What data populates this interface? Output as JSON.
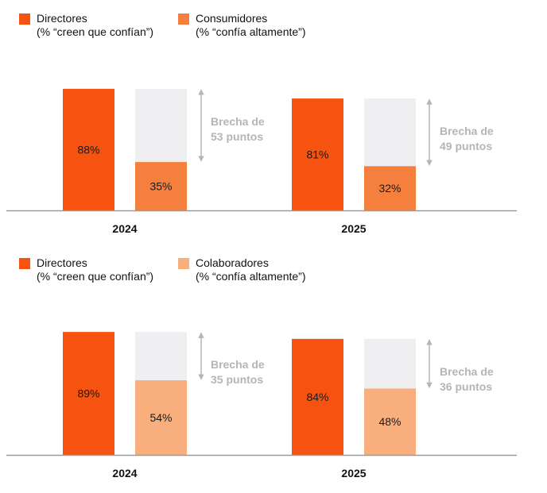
{
  "colors": {
    "primary": "#f5530f",
    "consumers": "#f5803e",
    "collaborators": "#f8ae7d",
    "track": "#efeff1",
    "axis": "#9a9a9a",
    "arrow": "#b5b5b5"
  },
  "chart_data": [
    {
      "type": "bar",
      "title": "",
      "ylim": [
        0,
        100
      ],
      "grid": false,
      "legend_placement": "top-left",
      "legend": [
        {
          "label": "Directores",
          "sublabel": "(% “creen que confían”)",
          "color": "#f5530f"
        },
        {
          "label": "Consumidores",
          "sublabel": "(% “confía altamente”)",
          "color": "#f5803e"
        }
      ],
      "categories": [
        "2024",
        "2025"
      ],
      "series": [
        {
          "name": "Directores",
          "values": [
            88,
            81
          ],
          "labels": [
            "88%",
            "81%"
          ],
          "color": "#f5530f"
        },
        {
          "name": "Consumidores",
          "values": [
            35,
            32
          ],
          "labels": [
            "35%",
            "32%"
          ],
          "color": "#f5803e"
        }
      ],
      "gaps": [
        {
          "line1": "Brecha de",
          "line2": "53 puntos"
        },
        {
          "line1": "Brecha de",
          "line2": "49 puntos"
        }
      ]
    },
    {
      "type": "bar",
      "title": "",
      "ylim": [
        0,
        100
      ],
      "grid": false,
      "legend_placement": "top-left",
      "legend": [
        {
          "label": "Directores",
          "sublabel": "(% “creen que confían”)",
          "color": "#f5530f"
        },
        {
          "label": "Colaboradores",
          "sublabel": "(% “confía altamente”)",
          "color": "#f8ae7d"
        }
      ],
      "categories": [
        "2024",
        "2025"
      ],
      "series": [
        {
          "name": "Directores",
          "values": [
            89,
            84
          ],
          "labels": [
            "89%",
            "84%"
          ],
          "color": "#f5530f"
        },
        {
          "name": "Colaboradores",
          "values": [
            54,
            48
          ],
          "labels": [
            "54%",
            "48%"
          ],
          "color": "#f8ae7d"
        }
      ],
      "gaps": [
        {
          "line1": "Brecha de",
          "line2": "35 puntos"
        },
        {
          "line1": "Brecha de",
          "line2": "36 puntos"
        }
      ]
    }
  ]
}
